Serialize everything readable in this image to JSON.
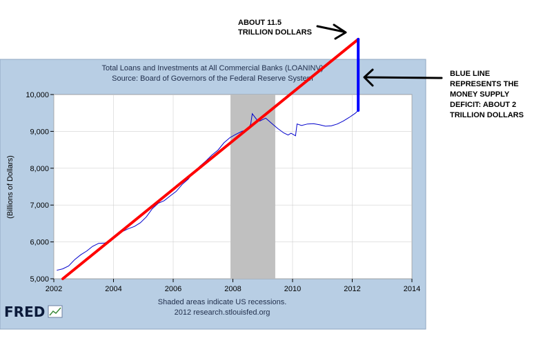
{
  "chart_data": {
    "type": "line",
    "title": "Total Loans and Investments at All Commercial Banks (LOANINV)",
    "subtitle": "Source: Board of Governors of the Federal Reserve System",
    "ylabel": "(Billions of Dollars)",
    "xlim": [
      2002,
      2014
    ],
    "ylim": [
      5000,
      10000
    ],
    "x_ticks": [
      2002,
      2004,
      2006,
      2008,
      2010,
      2012,
      2014
    ],
    "x_tick_labels": [
      "2002",
      "2004",
      "2006",
      "2008",
      "2010",
      "2012",
      "2014"
    ],
    "y_ticks": [
      5000,
      6000,
      7000,
      8000,
      9000,
      10000
    ],
    "y_tick_labels": [
      "5,000",
      "6,000",
      "7,000",
      "8,000",
      "9,000",
      "10,000"
    ],
    "grid": true,
    "recession_shading": [
      {
        "start": 2007.92,
        "end": 2009.42
      }
    ],
    "series": [
      {
        "color": "#0000cc",
        "x": [
          2002.1,
          2002.3,
          2002.5,
          2002.7,
          2002.9,
          2003.1,
          2003.3,
          2003.5,
          2003.7,
          2003.9,
          2004.1,
          2004.3,
          2004.5,
          2004.7,
          2004.9,
          2005.1,
          2005.3,
          2005.5,
          2005.7,
          2005.9,
          2006.1,
          2006.3,
          2006.5,
          2006.7,
          2006.9,
          2007.1,
          2007.3,
          2007.5,
          2007.7,
          2007.9,
          2008.1,
          2008.3,
          2008.5,
          2008.6,
          2008.65,
          2008.8,
          2008.9,
          2009.1,
          2009.3,
          2009.5,
          2009.7,
          2009.85,
          2009.95,
          2010.1,
          2010.15,
          2010.3,
          2010.5,
          2010.7,
          2010.9,
          2011.1,
          2011.3,
          2011.5,
          2011.7,
          2011.9,
          2012.1,
          2012.2
        ],
        "values": [
          5230,
          5270,
          5350,
          5520,
          5650,
          5750,
          5880,
          5960,
          5970,
          6020,
          6150,
          6280,
          6360,
          6420,
          6520,
          6680,
          6900,
          7050,
          7120,
          7250,
          7370,
          7560,
          7700,
          7900,
          8060,
          8200,
          8360,
          8490,
          8690,
          8830,
          8920,
          9000,
          9050,
          9200,
          9480,
          9320,
          9280,
          9360,
          9220,
          9080,
          8960,
          8900,
          8950,
          8880,
          9200,
          9160,
          9200,
          9210,
          9180,
          9140,
          9150,
          9200,
          9280,
          9380,
          9490,
          9570
        ]
      }
    ],
    "annotations": {
      "red_line": {
        "x": [
          2002.3,
          2012.2
        ],
        "y": [
          5000,
          11500
        ]
      },
      "blue_line": {
        "x": [
          2012.2,
          2012.2
        ],
        "y": [
          9570,
          11500
        ]
      },
      "top_label": [
        "ABOUT 11.5",
        "TRILLION DOLLARS"
      ],
      "side_label": [
        "BLUE LINE",
        "REPRESENTS THE",
        "MONEY SUPPLY",
        "DEFICIT: ABOUT 2",
        "TRILLION DOLLARS"
      ]
    }
  },
  "footer": {
    "line1": "Shaded areas indicate US recessions.",
    "line2": "2012 research.stlouisfed.org",
    "logo": "FRED"
  },
  "colors": {
    "frame_bg": "#b8cee4",
    "plot_bg": "#ffffff",
    "recession": "#c0c0c0",
    "trend": "#ff0000",
    "deficit": "#0000ff",
    "series": "#0000cc"
  }
}
